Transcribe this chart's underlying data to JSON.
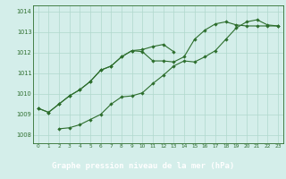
{
  "title": "Graphe pression niveau de la mer (hPa)",
  "bg_color": "#d4eeea",
  "label_bg_color": "#4a9a78",
  "grid_color": "#b0d8cc",
  "line_color": "#2d6e2d",
  "text_color": "#ffffff",
  "xlim": [
    -0.5,
    23.5
  ],
  "ylim": [
    1007.6,
    1014.3
  ],
  "xtick_labels": [
    "0",
    "1",
    "2",
    "3",
    "4",
    "5",
    "6",
    "7",
    "8",
    "9",
    "10",
    "11",
    "12",
    "13",
    "14",
    "15",
    "16",
    "17",
    "18",
    "19",
    "20",
    "21",
    "22",
    "23"
  ],
  "xtick_vals": [
    0,
    1,
    2,
    3,
    4,
    5,
    6,
    7,
    8,
    9,
    10,
    11,
    12,
    13,
    14,
    15,
    16,
    17,
    18,
    19,
    20,
    21,
    22,
    23
  ],
  "yticks": [
    1008,
    1009,
    1010,
    1011,
    1012,
    1013,
    1014
  ],
  "series": [
    {
      "x": [
        0,
        1,
        2,
        3,
        4,
        5,
        6,
        7,
        8,
        9,
        10,
        11,
        12,
        13
      ],
      "y": [
        1009.3,
        1009.1,
        1009.5,
        1009.9,
        1010.2,
        1010.6,
        1011.15,
        1011.35,
        1011.8,
        1012.1,
        1012.15,
        1012.3,
        1012.4,
        1012.05
      ]
    },
    {
      "x": [
        0,
        1,
        2,
        3,
        4,
        5,
        6,
        7,
        8,
        9,
        10,
        11,
        12,
        13,
        14,
        15,
        16,
        17,
        18,
        19,
        20,
        21,
        22,
        23
      ],
      "y": [
        1009.3,
        1009.1,
        1009.5,
        1009.9,
        1010.2,
        1010.6,
        1011.15,
        1011.35,
        1011.8,
        1012.1,
        1012.05,
        1011.6,
        1011.6,
        1011.55,
        1011.8,
        1012.65,
        1013.1,
        1013.4,
        1013.5,
        1013.35,
        1013.3,
        1013.3,
        1013.3,
        1013.3
      ]
    },
    {
      "x": [
        2,
        3,
        4,
        5,
        6,
        7,
        8,
        9,
        10,
        11,
        12,
        13,
        14,
        15,
        16,
        17,
        18,
        19,
        20,
        21,
        22,
        23
      ],
      "y": [
        1008.3,
        1008.35,
        1008.5,
        1008.75,
        1009.0,
        1009.5,
        1009.85,
        1009.9,
        1010.05,
        1010.5,
        1010.9,
        1011.35,
        1011.6,
        1011.55,
        1011.8,
        1012.1,
        1012.65,
        1013.2,
        1013.5,
        1013.6,
        1013.35,
        1013.3
      ]
    }
  ]
}
